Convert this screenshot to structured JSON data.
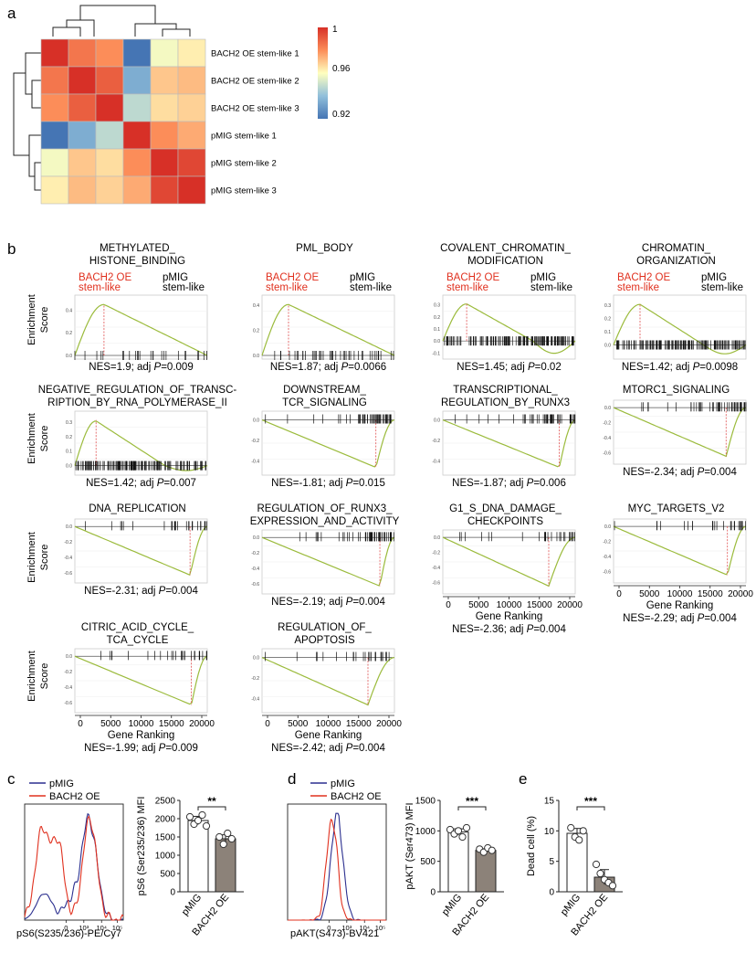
{
  "panel_labels": [
    "a",
    "b",
    "c",
    "d",
    "e"
  ],
  "heatmap": {
    "row_labels": [
      "BACH2 OE stem-like 1",
      "BACH2 OE stem-like 2",
      "BACH2 OE stem-like 3",
      "pMIG stem-like 1",
      "pMIG stem-like 2",
      "pMIG stem-like 3"
    ],
    "matrix": [
      [
        1.0,
        0.985,
        0.98,
        0.92,
        0.958,
        0.963
      ],
      [
        0.985,
        1.0,
        0.99,
        0.935,
        0.97,
        0.972
      ],
      [
        0.98,
        0.99,
        1.0,
        0.948,
        0.966,
        0.968
      ],
      [
        0.92,
        0.935,
        0.948,
        1.0,
        0.98,
        0.975
      ],
      [
        0.958,
        0.97,
        0.966,
        0.98,
        1.0,
        0.995
      ],
      [
        0.963,
        0.972,
        0.968,
        0.975,
        0.995,
        1.0
      ]
    ],
    "scale": {
      "max_label": "1",
      "mid_label": "0.96",
      "min_label": "0.92",
      "min": 0.92,
      "max": 1.0
    },
    "colors": {
      "high": "#d73027",
      "mid": "#ffffbf",
      "low": "#4575b4"
    }
  },
  "gsea": {
    "y_axis_title_line1": "Enrichment",
    "y_axis_title_line2": "Score",
    "x_axis_title": "Gene Ranking",
    "x_ticks": [
      "0",
      "5000",
      "10000",
      "15000",
      "20000"
    ],
    "group_left_line1": "BACH2 OE",
    "group_left_line2": "stem-like",
    "group_right_line1": "pMIG",
    "group_right_line2": "stem-like",
    "curve_color": "#9bbb3c",
    "peak_line_color": "#e05050",
    "plots": [
      {
        "title1": "METHYLATED_",
        "title2": "HISTONE_BINDING",
        "nes": "NES=1.9; adj ",
        "pval": "=0.009",
        "type": "pos",
        "peak": 0.22,
        "ymax": 0.5,
        "ymin": 0,
        "tick_labels": [
          "0.4",
          "0.2",
          "0.0"
        ],
        "density": "sparse"
      },
      {
        "title1": "PML_BODY",
        "title2": "",
        "nes": "NES=1.87; adj ",
        "pval": "=0.0066",
        "type": "pos",
        "peak": 0.2,
        "ymax": 0.45,
        "ymin": 0,
        "tick_labels": [
          "0.4",
          "0.2",
          "0.0"
        ],
        "density": "medium"
      },
      {
        "title1": "COVALENT_CHROMATIN_",
        "title2": "MODIFICATION",
        "nes": "NES=1.45; adj ",
        "pval": "=0.02",
        "type": "mixed",
        "peak": 0.18,
        "ymax": 0.35,
        "ymin": -0.12,
        "tick_labels": [
          "0.3",
          "0.2",
          "0.1",
          "0.0",
          "-0.1"
        ],
        "density": "dense"
      },
      {
        "title1": "CHROMATIN_",
        "title2": "ORGANIZATION",
        "nes": "NES=1.42; adj ",
        "pval": "=0.0098",
        "type": "mixed",
        "peak": 0.2,
        "ymax": 0.35,
        "ymin": -0.08,
        "tick_labels": [
          "0.3",
          "0.2",
          "0.1",
          "0.0"
        ],
        "density": "dense"
      },
      {
        "title1": "NEGATIVE_REGULATION_OF_TRANSC-",
        "title2": "RIPTION_BY_RNA_POLYMERASE_II",
        "nes": "NES=1.42; adj ",
        "pval": "=0.007",
        "type": "mixed",
        "peak": 0.16,
        "ymax": 0.35,
        "ymin": -0.04,
        "tick_labels": [
          "0.3",
          "0.2",
          "0.1",
          "0.0"
        ],
        "density": "dense"
      },
      {
        "title1": "DOWNSTREAM_",
        "title2": "TCR_SIGNALING",
        "nes": "NES=-1.81; adj ",
        "pval": "=0.015",
        "type": "neg",
        "peak": 0.86,
        "ymax": 0.05,
        "ymin": -0.5,
        "tick_labels": [
          "0.0",
          "-0.2",
          "-0.4"
        ],
        "density": "medium"
      },
      {
        "title1": "TRANSCRIPTIONAL_",
        "title2": "REGULATION_BY_RUNX3",
        "nes": "NES=-1.87; adj ",
        "pval": "=0.006",
        "type": "neg",
        "peak": 0.88,
        "ymax": 0.05,
        "ymin": -0.5,
        "tick_labels": [
          "0.0",
          "-0.2",
          "-0.4"
        ],
        "density": "medium"
      },
      {
        "title1": "MTORC1_SIGNALING",
        "title2": "",
        "nes": "NES=-2.34; adj ",
        "pval": "=0.004",
        "type": "neg",
        "peak": 0.85,
        "ymax": 0.05,
        "ymin": -0.7,
        "tick_labels": [
          "0.0",
          "-0.2",
          "-0.4",
          "-0.6"
        ],
        "density": "medium"
      },
      {
        "title1": "DNA_REPLICATION",
        "title2": "",
        "nes": "NES=-2.31; adj ",
        "pval": "=0.004",
        "type": "neg",
        "peak": 0.87,
        "ymax": 0.05,
        "ymin": -0.68,
        "tick_labels": [
          "0.0",
          "-0.2",
          "-0.4",
          "-0.6"
        ],
        "density": "sparse"
      },
      {
        "title1": "REGULATION_OF_RUNX3_",
        "title2": "EXPRESSION_AND_ACTIVITY",
        "nes": "NES=-2.19; adj ",
        "pval": "=0.004",
        "type": "neg",
        "peak": 0.89,
        "ymax": 0.05,
        "ymin": -0.68,
        "tick_labels": [
          "0.0",
          "-0.2",
          "-0.4",
          "-0.6"
        ],
        "density": "medium"
      },
      {
        "title1": "G1_S_DNA_DAMAGE_",
        "title2": "CHECKPOINTS",
        "nes": "NES=-2.36; adj ",
        "pval": "=0.004",
        "type": "neg",
        "peak": 0.8,
        "ymax": 0.05,
        "ymin": -0.7,
        "tick_labels": [
          "0.0",
          "-0.2",
          "-0.4",
          "-0.6"
        ],
        "density": "sparse"
      },
      {
        "title1": "MYC_TARGETS_V2",
        "title2": "",
        "nes": "NES=-2.29; adj ",
        "pval": "=0.004",
        "type": "neg",
        "peak": 0.86,
        "ymax": 0.05,
        "ymin": -0.7,
        "tick_labels": [
          "0.0",
          "-0.2",
          "-0.4",
          "-0.6"
        ],
        "density": "sparse"
      },
      {
        "title1": "CITRIC_ACID_CYCLE_",
        "title2": "TCA_CYCLE",
        "nes": "NES=-1.99; adj ",
        "pval": "=0.009",
        "type": "neg",
        "peak": 0.88,
        "ymax": 0.05,
        "ymin": -0.68,
        "tick_labels": [
          "0.0",
          "-0.2",
          "-0.4",
          "-0.6"
        ],
        "density": "sparse"
      },
      {
        "title1": "REGULATION_OF_",
        "title2": "APOPTOSIS",
        "nes": "NES=-2.42; adj ",
        "pval": "=0.004",
        "type": "neg",
        "peak": 0.8,
        "ymax": 0.05,
        "ymin": -0.5,
        "tick_labels": [
          "0.0",
          "-0.2",
          "-0.4"
        ],
        "density": "sparse"
      }
    ]
  },
  "panel_c": {
    "legend": [
      "pMIG",
      "BACH2 OE"
    ],
    "legend_colors": [
      "#2b2f8f",
      "#e0301e"
    ],
    "hist_xlabel": "pS6(S235/236)-PE/Cy7",
    "bar_ylabel": "pS6 (Ser235/236) MFI",
    "yticks": [
      "0",
      "500",
      "1000",
      "1500",
      "2000",
      "2500"
    ],
    "ymax": 2500,
    "groups": [
      "pMIG",
      "BACH2 OE"
    ],
    "means": [
      1950,
      1450
    ],
    "points": [
      [
        2050,
        1850,
        1950,
        2100,
        1800
      ],
      [
        1500,
        1300,
        1600,
        1450
      ]
    ],
    "significance": "**"
  },
  "panel_d": {
    "legend": [
      "pMIG",
      "BACH2 OE"
    ],
    "legend_colors": [
      "#2b2f8f",
      "#e0301e"
    ],
    "hist_xlabel": "pAKT(S473)-BV421",
    "bar_ylabel": "pAKT (Ser473) MFI",
    "yticks": [
      "0",
      "500",
      "1000",
      "1500"
    ],
    "ymax": 1500,
    "groups": [
      "pMIG",
      "BACH2 OE"
    ],
    "means": [
      980,
      680
    ],
    "points": [
      [
        1020,
        950,
        1000,
        900,
        1050
      ],
      [
        700,
        650,
        720,
        680
      ]
    ],
    "significance": "***"
  },
  "panel_e": {
    "bar_ylabel": "Dead cell (%)",
    "yticks": [
      "0",
      "5",
      "10",
      "15"
    ],
    "ymax": 15,
    "groups": [
      "pMIG",
      "BACH2 OE"
    ],
    "means": [
      9.6,
      2.4
    ],
    "points": [
      [
        10.5,
        9.0,
        8.5,
        10.0
      ],
      [
        4.5,
        3.0,
        2.0,
        1.5,
        1.0
      ]
    ],
    "significance": "***"
  },
  "flow_axis_ticks": [
    "0",
    "10³",
    "10⁴",
    "10⁵"
  ],
  "p_italic": "P"
}
